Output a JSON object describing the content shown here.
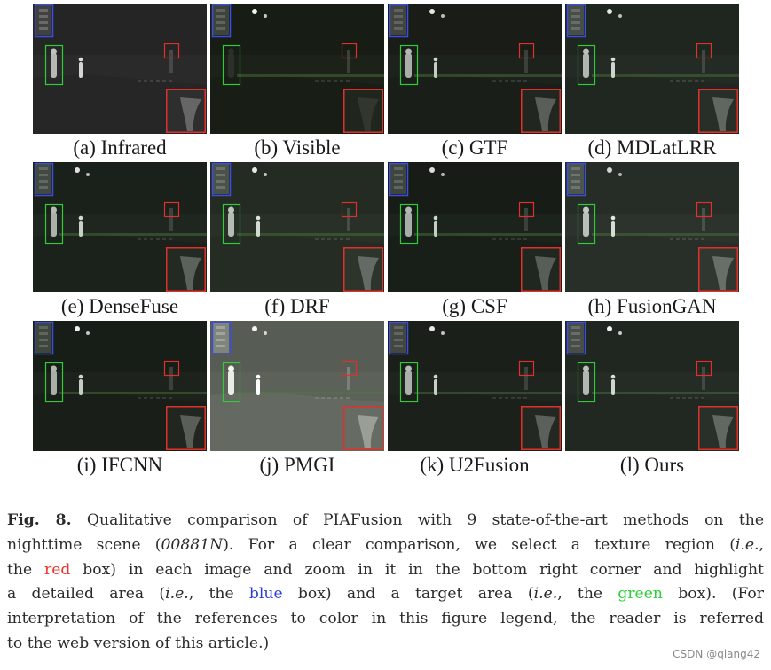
{
  "figure": {
    "panels": [
      {
        "label": "(a)  Infrared",
        "tone": "#2a2a2a",
        "lights": "#d8d8d8",
        "style": "ir"
      },
      {
        "label": "(b)  Visible",
        "tone": "#1c2219",
        "lights": "#f2f2ea",
        "style": "vis"
      },
      {
        "label": "(c)  GTF",
        "tone": "#1e221d",
        "lights": "#e6e6e6",
        "style": "fused"
      },
      {
        "label": "(d)  MDLatLRR",
        "tone": "#242a24",
        "lights": "#e6e6e6",
        "style": "fused"
      },
      {
        "label": "(e)  DenseFuse",
        "tone": "#1f251f",
        "lights": "#e0e0e0",
        "style": "fused"
      },
      {
        "label": "(f)  DRF",
        "tone": "#283028",
        "lights": "#e8e8e8",
        "style": "fused"
      },
      {
        "label": "(g)  CSF",
        "tone": "#1c221c",
        "lights": "#dcdcdc",
        "style": "fused"
      },
      {
        "label": "(h)  FusionGAN",
        "tone": "#2c322c",
        "lights": "#d4d4d4",
        "style": "fused"
      },
      {
        "label": "(i)  IFCNN",
        "tone": "#1d231c",
        "lights": "#f0f0f0",
        "style": "fused"
      },
      {
        "label": "(j)  PMGI",
        "tone": "#5c6259",
        "lights": "#f4f4f4",
        "style": "bright"
      },
      {
        "label": "(k)  U2Fusion",
        "tone": "#1f241f",
        "lights": "#e8e8e8",
        "style": "fused"
      },
      {
        "label": "(l)  Ours",
        "tone": "#252b25",
        "lights": "#f4f4f4",
        "style": "fused"
      }
    ],
    "box_colors": {
      "red": "#e0302a",
      "blue": "#3a4ee0",
      "green": "#2fcc3a"
    }
  },
  "caption": {
    "fig_label": "Fig. 8.",
    "l1_text": " Qualitative comparison of PIAFusion with 9 state-of-the-art methods on the",
    "l2_a": "nighttime scene (",
    "l2_id": "00881N",
    "l2_b": "). For a clear comparison, we select a texture region (",
    "l2_ie": "i.e.",
    "l2_c": ",",
    "l3_a": "the ",
    "l3_red": "red",
    "l3_b": " box) in each image and zoom in it in the bottom right corner and highlight",
    "l4_a": "a detailed area (",
    "l4_ie1": "i.e.",
    "l4_b": ", the ",
    "l4_blue": "blue",
    "l4_c": " box) and a target area (",
    "l4_ie2": "i.e.",
    "l4_d": ", the ",
    "l4_green": "green",
    "l4_e": " box). (For",
    "l5": "interpretation of the references to color in this figure legend, the reader is referred",
    "l6": "to the web version of this article.)"
  },
  "watermark": "CSDN @qiang42"
}
